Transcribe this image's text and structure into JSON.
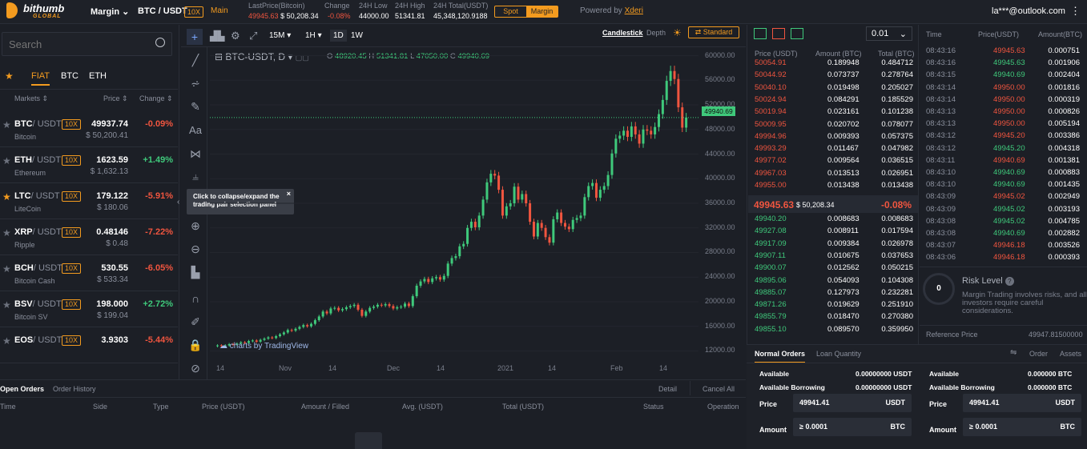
{
  "topbar": {
    "brand": "bithumb",
    "brand_sub": "GLOBAL",
    "margin_menu": "Margin",
    "pair": "BTC / USDT",
    "leverage": "10X",
    "board": "Main",
    "last_price_label": "LastPrice(Bitcoin)",
    "last_price": "49945.63",
    "last_price_usd": "$ 50,208.34",
    "change_label": "Change",
    "change": "-0.08%",
    "low_label": "24H Low",
    "low": "44000.00",
    "high_label": "24H High",
    "high": "51341.81",
    "total_label": "24H Total(USDT)",
    "total": "45,348,120.9188",
    "spot_tab": "Spot",
    "margin_tab": "Margin",
    "powered_by": "Powered by",
    "powered_name": "Xderi",
    "user": "la***@outlook.com"
  },
  "markets": {
    "search_placeholder": "Search",
    "tabs": [
      "FIAT",
      "BTC",
      "ETH"
    ],
    "col_markets": "Markets",
    "col_price": "Price",
    "col_change": "Change",
    "rows": [
      {
        "base": "BTC",
        "quote": "/ USDT",
        "lev": "10X",
        "name": "Bitcoin",
        "price": "49937.74",
        "usd": "$ 50,200.41",
        "change": "-0.09%",
        "up": false,
        "fav": false
      },
      {
        "base": "ETH",
        "quote": "/ USDT",
        "lev": "10X",
        "name": "Ethereum",
        "price": "1623.59",
        "usd": "$ 1,632.13",
        "change": "+1.49%",
        "up": true,
        "fav": false
      },
      {
        "base": "LTC",
        "quote": "/ USDT",
        "lev": "10X",
        "name": "LiteCoin",
        "price": "179.122",
        "usd": "$ 180.06",
        "change": "-5.91%",
        "up": false,
        "fav": true
      },
      {
        "base": "XRP",
        "quote": "/ USDT",
        "lev": "10X",
        "name": "Ripple",
        "price": "0.48146",
        "usd": "$ 0.48",
        "change": "-7.22%",
        "up": false,
        "fav": false
      },
      {
        "base": "BCH",
        "quote": "/ USDT",
        "lev": "10X",
        "name": "Bitcoin Cash",
        "price": "530.55",
        "usd": "$ 533.34",
        "change": "-6.05%",
        "up": false,
        "fav": false
      },
      {
        "base": "BSV",
        "quote": "/ USDT",
        "lev": "10X",
        "name": "Bitcoin SV",
        "price": "198.000",
        "usd": "$ 199.04",
        "change": "+2.72%",
        "up": true,
        "fav": false
      },
      {
        "base": "EOS",
        "quote": "/ USDT",
        "lev": "10X",
        "name": "",
        "price": "3.9303",
        "usd": "",
        "change": "-5.44%",
        "up": false,
        "fav": false
      }
    ]
  },
  "chart": {
    "intervals": [
      "15M",
      "1H",
      "1D",
      "1W"
    ],
    "active_interval": "1D",
    "view_candlestick": "Candlestick",
    "view_depth": "Depth",
    "standard": "Standard",
    "symbol": "BTC-USDT, D",
    "ohlc": {
      "o_label": "O",
      "o": "48920.45",
      "h_label": "H",
      "h": "51341.81",
      "l_label": "L",
      "l": "47050.00",
      "c_label": "C",
      "c": "49940.69"
    },
    "current_price_tag": "49940.69",
    "tooltip": "Click to collapse/expand the trading pair selection panel",
    "watermark": "charts by TradingView",
    "y_ticks": [
      "60000.00",
      "56000.00",
      "52000.00",
      "48000.00",
      "44000.00",
      "40000.00",
      "36000.00",
      "32000.00",
      "28000.00",
      "24000.00",
      "20000.00",
      "16000.00",
      "12000.00"
    ],
    "x_ticks": [
      "14",
      "Nov",
      "14",
      "Dec",
      "14",
      "2021",
      "14",
      "Feb",
      "14"
    ]
  },
  "chart_data": {
    "type": "candlestick",
    "title": "",
    "ylim": [
      10500,
      61500
    ],
    "closes": [
      12900,
      12800,
      12900,
      13100,
      13000,
      13200,
      13400,
      13300,
      13600,
      13700,
      13500,
      13800,
      14000,
      14200,
      14100,
      14400,
      14700,
      15000,
      15400,
      15300,
      15600,
      15900,
      16200,
      16000,
      16400,
      17000,
      17600,
      18400,
      18100,
      18900,
      19000,
      18600,
      18800,
      19100,
      19300,
      19500,
      18700,
      17700,
      18400,
      19000,
      19200,
      19500,
      19400,
      19600,
      19300,
      18900,
      19100,
      19200,
      19700,
      19300,
      20900,
      22600,
      23300,
      23700,
      23200,
      23800,
      24000,
      23600,
      24200,
      26200,
      27100,
      27400,
      29000,
      29400,
      32000,
      33000,
      32100,
      34000,
      36600,
      39400,
      40800,
      40500,
      38200,
      34000,
      35500,
      36000,
      38700,
      36600,
      37500,
      36000,
      33000,
      30600,
      32800,
      32000,
      30500,
      29600,
      33400,
      34500,
      32800,
      32200,
      31800,
      33300,
      33600,
      34000,
      37000,
      38800,
      39300,
      36900,
      38200,
      38800,
      40600,
      44100,
      46500,
      47000,
      47800,
      46800,
      48500,
      47200,
      45700,
      48000,
      47800,
      47200,
      48400,
      50500,
      52800,
      55900,
      57500,
      56200,
      51600,
      48300,
      49940
    ],
    "color_up": "#3fc97b",
    "color_down": "#f0553f"
  },
  "orderbook": {
    "precision": "0.01",
    "col_price": "Price (USDT)",
    "col_amount": "Amount (BTC)",
    "col_total": "Total (BTC)",
    "asks": [
      [
        "50054.91",
        "0.189948",
        "0.484712"
      ],
      [
        "50044.92",
        "0.073737",
        "0.278764"
      ],
      [
        "50040.10",
        "0.019498",
        "0.205027"
      ],
      [
        "50024.94",
        "0.084291",
        "0.185529"
      ],
      [
        "50019.94",
        "0.023161",
        "0.101238"
      ],
      [
        "50009.95",
        "0.020702",
        "0.078077"
      ],
      [
        "49994.96",
        "0.009393",
        "0.057375"
      ],
      [
        "49993.29",
        "0.011467",
        "0.047982"
      ],
      [
        "49977.02",
        "0.009564",
        "0.036515"
      ],
      [
        "49967.03",
        "0.013513",
        "0.026951"
      ],
      [
        "49955.00",
        "0.013438",
        "0.013438"
      ]
    ],
    "mid_price": "49945.63",
    "mid_usd": "$ 50,208.34",
    "mid_change": "-0.08%",
    "bids": [
      [
        "49940.20",
        "0.008683",
        "0.008683"
      ],
      [
        "49927.08",
        "0.008911",
        "0.017594"
      ],
      [
        "49917.09",
        "0.009384",
        "0.026978"
      ],
      [
        "49907.11",
        "0.010675",
        "0.037653"
      ],
      [
        "49900.07",
        "0.012562",
        "0.050215"
      ],
      [
        "49895.06",
        "0.054093",
        "0.104308"
      ],
      [
        "49885.07",
        "0.127973",
        "0.232281"
      ],
      [
        "49871.26",
        "0.019629",
        "0.251910"
      ],
      [
        "49855.79",
        "0.018470",
        "0.270380"
      ],
      [
        "49855.10",
        "0.089570",
        "0.359950"
      ]
    ]
  },
  "trades": {
    "col_time": "Time",
    "col_price": "Price(USDT)",
    "col_amount": "Amount(BTC)",
    "rows": [
      [
        "08:43:16",
        "49945.63",
        "0.000751",
        false
      ],
      [
        "08:43:16",
        "49945.63",
        "0.001906",
        true
      ],
      [
        "08:43:15",
        "49940.69",
        "0.002404",
        true
      ],
      [
        "08:43:14",
        "49950.00",
        "0.001816",
        false
      ],
      [
        "08:43:14",
        "49950.00",
        "0.000319",
        false
      ],
      [
        "08:43:13",
        "49950.00",
        "0.000826",
        false
      ],
      [
        "08:43:13",
        "49950.00",
        "0.005194",
        false
      ],
      [
        "08:43:12",
        "49945.20",
        "0.003386",
        false
      ],
      [
        "08:43:12",
        "49945.20",
        "0.004318",
        true
      ],
      [
        "08:43:11",
        "49940.69",
        "0.001381",
        false
      ],
      [
        "08:43:10",
        "49940.69",
        "0.000883",
        true
      ],
      [
        "08:43:10",
        "49940.69",
        "0.001435",
        true
      ],
      [
        "08:43:09",
        "49945.02",
        "0.002949",
        false
      ],
      [
        "08:43:09",
        "49945.02",
        "0.003193",
        true
      ],
      [
        "08:43:08",
        "49945.02",
        "0.004785",
        true
      ],
      [
        "08:43:08",
        "49940.69",
        "0.002882",
        true
      ],
      [
        "08:43:07",
        "49946.18",
        "0.003526",
        false
      ],
      [
        "08:43:06",
        "49946.18",
        "0.000393",
        false
      ]
    ]
  },
  "risk": {
    "value": "0",
    "title": "Risk Level",
    "text": "Margin Trading involves risks, and all investors require careful considerations.",
    "ref_label": "Reference Price",
    "ref_value": "49947.81500000"
  },
  "order_form": {
    "tab_normal": "Normal Orders",
    "tab_loan": "Loan Quantity",
    "orders_link": "Order",
    "assets_link": "Assets",
    "buy": {
      "available_label": "Available",
      "available": "0.00000000 USDT",
      "borrow_label": "Available Borrowing",
      "borrow": "0.00000000 USDT",
      "price_label": "Price",
      "price": "49941.41",
      "price_unit": "USDT",
      "amount_label": "Amount",
      "amount": "≥ 0.0001",
      "amount_unit": "BTC"
    },
    "sell": {
      "available_label": "Available",
      "available": "0.000000 BTC",
      "borrow_label": "Available Borrowing",
      "borrow": "0.000000 BTC",
      "price_label": "Price",
      "price": "49941.41",
      "price_unit": "USDT",
      "amount_label": "Amount",
      "amount": "≥ 0.0001",
      "amount_unit": "BTC"
    }
  },
  "orders": {
    "tab_open": "Open Orders",
    "tab_history": "Order History",
    "detail": "Detail",
    "cancel_all": "Cancel All",
    "cols": [
      "Time",
      "Side",
      "Type",
      "Price (USDT)",
      "Amount / Filled",
      "Avg. (USDT)",
      "Total (USDT)",
      "Status",
      "Operation"
    ]
  }
}
